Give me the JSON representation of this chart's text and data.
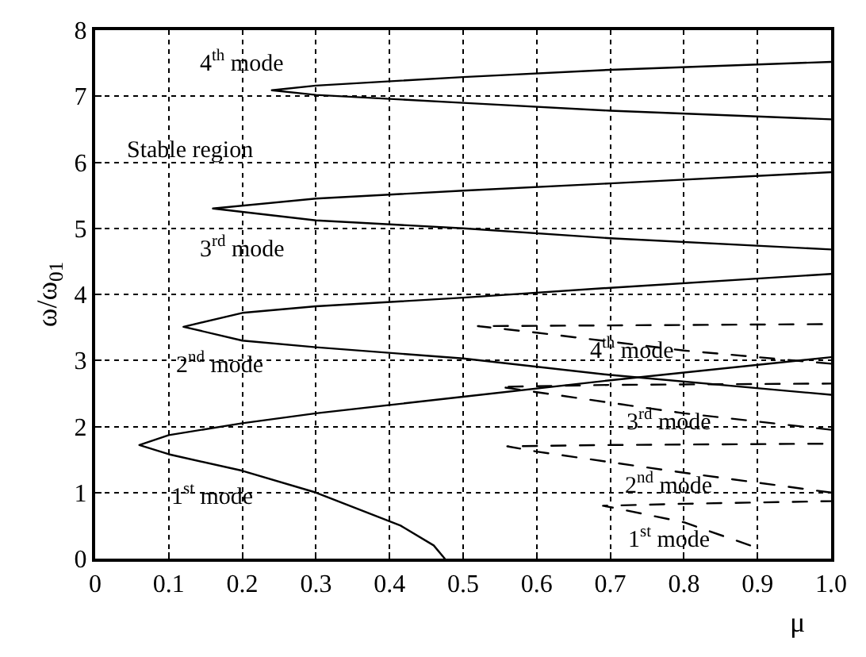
{
  "chart_data": {
    "type": "line",
    "xlabel": "μ",
    "ylabel": "ω/ω$_{01}$",
    "xlim": [
      0,
      1
    ],
    "ylim": [
      0,
      8
    ],
    "xticks": [
      {
        "value": 0,
        "label": "0"
      },
      0.1,
      0.2,
      0.3,
      0.4,
      0.5,
      0.6,
      0.7,
      0.8,
      0.9,
      {
        "value": 1,
        "label": "1.0"
      }
    ],
    "yticks": [
      0,
      1,
      2,
      3,
      4,
      5,
      6,
      7,
      8
    ],
    "grid": true,
    "marker": "none",
    "series": [
      {
        "color": "#000000",
        "line_style": "solid",
        "x": [
          0.475,
          0.46,
          0.415,
          0.3,
          0.2,
          0.1,
          0.06,
          0.1,
          0.2,
          0.3,
          0.5,
          0.7,
          1.0
        ],
        "values": [
          0,
          0.2,
          0.5,
          1.0,
          1.33,
          1.58,
          1.72,
          1.87,
          2.05,
          2.2,
          2.45,
          2.7,
          3.05
        ]
      },
      {
        "color": "#000000",
        "line_style": "solid",
        "x": [
          1.0,
          0.7,
          0.5,
          0.3,
          0.2,
          0.12,
          0.2,
          0.3,
          0.5,
          0.7,
          1.0
        ],
        "values": [
          2.48,
          2.78,
          3.03,
          3.2,
          3.3,
          3.51,
          3.72,
          3.82,
          3.95,
          4.1,
          4.31
        ]
      },
      {
        "color": "#000000",
        "line_style": "solid",
        "x": [
          1.0,
          0.7,
          0.5,
          0.3,
          0.16,
          0.3,
          0.5,
          0.7,
          1.0
        ],
        "values": [
          4.68,
          4.85,
          5.0,
          5.12,
          5.3,
          5.45,
          5.57,
          5.68,
          5.85
        ]
      },
      {
        "color": "#000000",
        "line_style": "solid",
        "x": [
          1.0,
          0.7,
          0.5,
          0.3,
          0.24,
          0.3,
          0.5,
          0.7,
          1.0
        ],
        "values": [
          6.65,
          6.78,
          6.9,
          7.02,
          7.09,
          7.16,
          7.29,
          7.4,
          7.52
        ]
      },
      {
        "color": "#000000",
        "line_style": "dashed",
        "x": [
          0.89,
          0.8,
          0.7,
          0.69,
          0.8,
          1.0
        ],
        "values": [
          0.2,
          0.55,
          0.78,
          0.8,
          0.83,
          0.87
        ]
      },
      {
        "color": "#000000",
        "line_style": "dashed",
        "x": [
          1.0,
          0.8,
          0.6,
          0.56,
          0.7,
          1.0
        ],
        "values": [
          1.0,
          1.3,
          1.62,
          1.7,
          1.72,
          1.74
        ]
      },
      {
        "color": "#000000",
        "line_style": "dashed",
        "x": [
          1.0,
          0.8,
          0.6,
          0.55,
          0.7,
          1.0
        ],
        "values": [
          1.95,
          2.2,
          2.52,
          2.6,
          2.63,
          2.65
        ]
      },
      {
        "color": "#000000",
        "line_style": "dashed",
        "x": [
          1.0,
          0.8,
          0.6,
          0.52,
          0.7,
          1.0
        ],
        "values": [
          2.95,
          3.15,
          3.42,
          3.52,
          3.53,
          3.55
        ]
      }
    ],
    "annotations": [
      "4$^{th}$ mode",
      "Stable region",
      "3$^{rd}$ mode",
      "2$^{nd}$ mode",
      "1$^{st}$ mode",
      "4$^{th}$ mode",
      "3$^{rd}$ mode",
      "2$^{nd}$ mode",
      "1$^{st}$ mode"
    ]
  }
}
